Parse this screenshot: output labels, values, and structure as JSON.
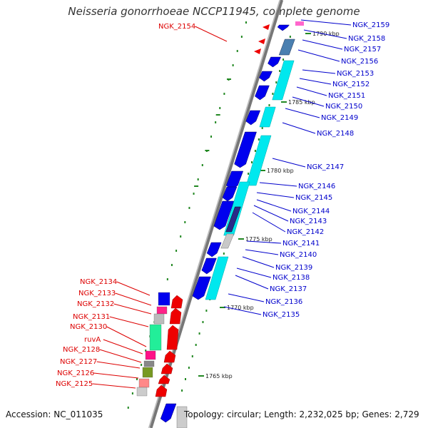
{
  "title": "Neisseria gonorrhoeae NCCP11945, complete genome",
  "footer": {
    "accession": "Accession: NC_011035",
    "summary": "Topology: circular; Length: 2,232,025 bp; Genes: 2,729"
  },
  "colors": {
    "reverse_label": "#dd0000",
    "forward_label": "#0000cc",
    "forward_gene": "#0000ee",
    "reverse_gene": "#ee0000",
    "tick": "#228822",
    "backbone": "#888888"
  },
  "scale_labels": [
    "1790 kbp",
    "1785 kbp",
    "1780 kbp",
    "1775 kbp",
    "1770 kbp",
    "1765 kbp"
  ],
  "left_labels": [
    "NGK_2154",
    "NGK_2134",
    "NGK_2133",
    "NGK_2132",
    "NGK_2131",
    "NGK_2130",
    "ruvA",
    "NGK_2128",
    "NGK_2127",
    "NGK_2126",
    "NGK_2125"
  ],
  "right_labels": [
    "NGK_2159",
    "NGK_2158",
    "NGK_2157",
    "NGK_2156",
    "NGK_2153",
    "NGK_2152",
    "NGK_2151",
    "NGK_2150",
    "NGK_2149",
    "NGK_2148",
    "NGK_2147",
    "NGK_2146",
    "NGK_2145",
    "NGK_2144",
    "NGK_2143",
    "NGK_2142",
    "NGK_2141",
    "NGK_2140",
    "NGK_2139",
    "NGK_2138",
    "NGK_2137",
    "NGK_2136",
    "NGK_2135"
  ]
}
